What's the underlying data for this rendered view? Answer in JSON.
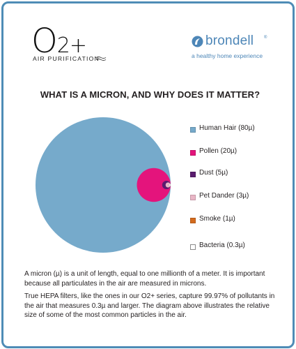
{
  "brand_left": {
    "name_main": "O",
    "name_sub": "2+",
    "tagline": "AIR PURIFICATION"
  },
  "brand_right": {
    "name": "brondell",
    "registered": "®",
    "tagline": "a healthy home experience"
  },
  "headline": "WHAT IS A MICRON, AND WHY DOES IT MATTER?",
  "particles": [
    {
      "label": "Human Hair (80µ)",
      "size_micron": 80,
      "color": "#76aacb"
    },
    {
      "label": "Pollen (20µ)",
      "size_micron": 20,
      "color": "#e4147c"
    },
    {
      "label": "Dust (5µ)",
      "size_micron": 5,
      "color": "#5a1c6e"
    },
    {
      "label": "Pet Dander (3µ)",
      "size_micron": 3,
      "color": "#e9b6c6"
    },
    {
      "label": "Smoke (1µ)",
      "size_micron": 1,
      "color": "#d46b1e"
    },
    {
      "label": "Bacteria (0.3µ)",
      "size_micron": 0.3,
      "color": "#ffffff"
    }
  ],
  "paragraphs": [
    "A micron (µ) is a unit of length, equal to one millionth of a meter. It is important because all particulates in the air are measured in microns.",
    "True HEPA filters, like the ones in our O2+ series, capture 99.97% of pollutants in the air that measures 0.3µ and larger. The diagram above illustrates the relative size of some of the most common particles in the air."
  ],
  "colors": {
    "border": "#4e8cb6",
    "brand_blue": "#4d86b7"
  }
}
